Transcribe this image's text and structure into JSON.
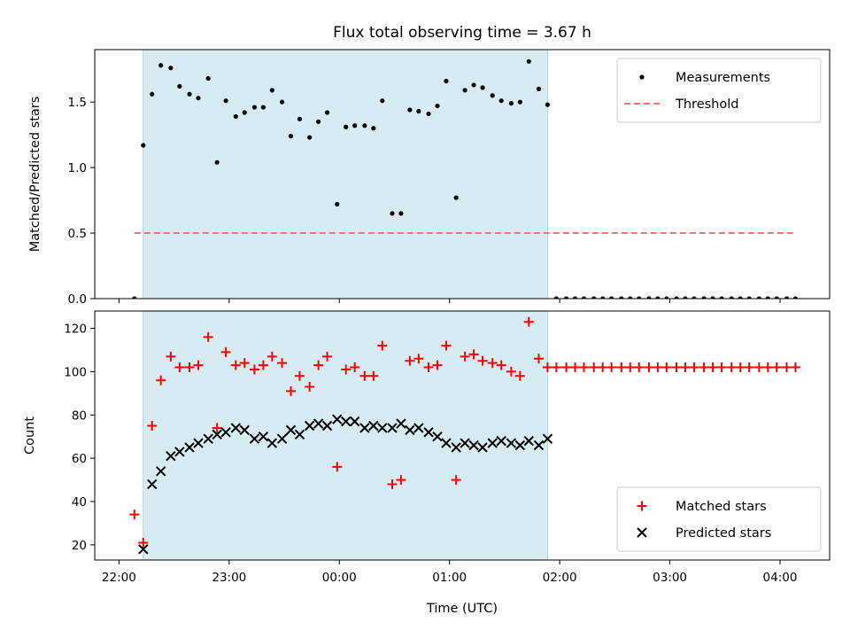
{
  "chart_data": {
    "title": "Flux total observing time = 3.67 h",
    "xlabel": "Time (UTC)",
    "x_units": "hours after 22:00 UTC (22:00 on day 0 = 0)",
    "xlim": [
      -0.22,
      6.45
    ],
    "x_ticks": [
      {
        "value": 0,
        "label": "22:00"
      },
      {
        "value": 1,
        "label": "23:00"
      },
      {
        "value": 2,
        "label": "00:00"
      },
      {
        "value": 3,
        "label": "01:00"
      },
      {
        "value": 4,
        "label": "02:00"
      },
      {
        "value": 5,
        "label": "03:00"
      },
      {
        "value": 6,
        "label": "04:00"
      }
    ],
    "shaded_span": {
      "x_start": 0.22,
      "x_end": 3.89,
      "color": "#add8e6",
      "alpha": 0.5
    },
    "panels": [
      {
        "name": "ratio",
        "type": "scatter",
        "ylabel": "Matched/Predicted stars",
        "ylim": [
          0,
          1.9
        ],
        "y_ticks": [
          0.0,
          0.5,
          1.0,
          1.5
        ],
        "y_tick_labels": [
          "0.0",
          "0.5",
          "1.0",
          "1.5"
        ],
        "legend": {
          "position": "top-right"
        },
        "series": [
          {
            "name": "Measurements",
            "marker": "dot",
            "color": "#000000",
            "points": [
              [
                0.14,
                0.0
              ],
              [
                0.22,
                1.17
              ],
              [
                0.3,
                1.56
              ],
              [
                0.38,
                1.78
              ],
              [
                0.47,
                1.76
              ],
              [
                0.55,
                1.62
              ],
              [
                0.64,
                1.56
              ],
              [
                0.72,
                1.53
              ],
              [
                0.81,
                1.68
              ],
              [
                0.89,
                1.04
              ],
              [
                0.97,
                1.51
              ],
              [
                1.06,
                1.39
              ],
              [
                1.14,
                1.42
              ],
              [
                1.23,
                1.46
              ],
              [
                1.31,
                1.46
              ],
              [
                1.39,
                1.59
              ],
              [
                1.48,
                1.5
              ],
              [
                1.56,
                1.24
              ],
              [
                1.64,
                1.37
              ],
              [
                1.73,
                1.23
              ],
              [
                1.81,
                1.35
              ],
              [
                1.89,
                1.42
              ],
              [
                1.98,
                0.72
              ],
              [
                2.06,
                1.31
              ],
              [
                2.14,
                1.32
              ],
              [
                2.23,
                1.32
              ],
              [
                2.31,
                1.3
              ],
              [
                2.39,
                1.51
              ],
              [
                2.48,
                0.65
              ],
              [
                2.56,
                0.65
              ],
              [
                2.64,
                1.44
              ],
              [
                2.72,
                1.43
              ],
              [
                2.81,
                1.41
              ],
              [
                2.89,
                1.47
              ],
              [
                2.97,
                1.66
              ],
              [
                3.06,
                0.77
              ],
              [
                3.14,
                1.59
              ],
              [
                3.22,
                1.63
              ],
              [
                3.3,
                1.61
              ],
              [
                3.39,
                1.55
              ],
              [
                3.47,
                1.51
              ],
              [
                3.56,
                1.49
              ],
              [
                3.64,
                1.5
              ],
              [
                3.72,
                1.81
              ],
              [
                3.81,
                1.6
              ],
              [
                3.89,
                1.48
              ],
              [
                3.97,
                0.0
              ],
              [
                4.06,
                0.0
              ],
              [
                4.14,
                0.0
              ],
              [
                4.22,
                0.0
              ],
              [
                4.31,
                0.0
              ],
              [
                4.39,
                0.0
              ],
              [
                4.47,
                0.0
              ],
              [
                4.56,
                0.0
              ],
              [
                4.64,
                0.0
              ],
              [
                4.72,
                0.0
              ],
              [
                4.81,
                0.0
              ],
              [
                4.89,
                0.0
              ],
              [
                4.97,
                0.0
              ],
              [
                5.06,
                0.0
              ],
              [
                5.14,
                0.0
              ],
              [
                5.22,
                0.0
              ],
              [
                5.31,
                0.0
              ],
              [
                5.39,
                0.0
              ],
              [
                5.47,
                0.0
              ],
              [
                5.56,
                0.0
              ],
              [
                5.64,
                0.0
              ],
              [
                5.72,
                0.0
              ],
              [
                5.81,
                0.0
              ],
              [
                5.89,
                0.0
              ],
              [
                5.97,
                0.0
              ],
              [
                6.06,
                0.0
              ],
              [
                6.14,
                0.0
              ]
            ]
          },
          {
            "name": "Threshold",
            "marker": "dashed-line",
            "color": "#ff7070",
            "points": [
              [
                0.14,
                0.5
              ],
              [
                6.14,
                0.5
              ]
            ]
          }
        ]
      },
      {
        "name": "counts",
        "type": "scatter",
        "ylabel": "Count",
        "ylim": [
          13,
          128
        ],
        "y_ticks": [
          20,
          40,
          60,
          80,
          100,
          120
        ],
        "y_tick_labels": [
          "20",
          "40",
          "60",
          "80",
          "100",
          "120"
        ],
        "legend": {
          "position": "bottom-right"
        },
        "series": [
          {
            "name": "Matched stars",
            "marker": "plus",
            "color": "#ff0000",
            "points": [
              [
                0.14,
                34
              ],
              [
                0.22,
                21
              ],
              [
                0.3,
                75
              ],
              [
                0.38,
                96
              ],
              [
                0.47,
                107
              ],
              [
                0.55,
                102
              ],
              [
                0.64,
                102
              ],
              [
                0.72,
                103
              ],
              [
                0.81,
                116
              ],
              [
                0.89,
                74
              ],
              [
                0.97,
                109
              ],
              [
                1.06,
                103
              ],
              [
                1.14,
                104
              ],
              [
                1.23,
                101
              ],
              [
                1.31,
                103
              ],
              [
                1.39,
                107
              ],
              [
                1.48,
                104
              ],
              [
                1.56,
                91
              ],
              [
                1.64,
                98
              ],
              [
                1.73,
                93
              ],
              [
                1.81,
                103
              ],
              [
                1.89,
                107
              ],
              [
                1.98,
                56
              ],
              [
                2.06,
                101
              ],
              [
                2.14,
                102
              ],
              [
                2.23,
                98
              ],
              [
                2.31,
                98
              ],
              [
                2.39,
                112
              ],
              [
                2.48,
                48
              ],
              [
                2.56,
                50
              ],
              [
                2.64,
                105
              ],
              [
                2.72,
                106
              ],
              [
                2.81,
                102
              ],
              [
                2.89,
                103
              ],
              [
                2.97,
                112
              ],
              [
                3.06,
                50
              ],
              [
                3.14,
                107
              ],
              [
                3.22,
                108
              ],
              [
                3.3,
                105
              ],
              [
                3.39,
                104
              ],
              [
                3.47,
                103
              ],
              [
                3.56,
                100
              ],
              [
                3.64,
                98
              ],
              [
                3.72,
                123
              ],
              [
                3.81,
                106
              ],
              [
                3.89,
                102
              ],
              [
                3.97,
                102
              ],
              [
                4.06,
                102
              ],
              [
                4.14,
                102
              ],
              [
                4.22,
                102
              ],
              [
                4.31,
                102
              ],
              [
                4.39,
                102
              ],
              [
                4.47,
                102
              ],
              [
                4.56,
                102
              ],
              [
                4.64,
                102
              ],
              [
                4.72,
                102
              ],
              [
                4.81,
                102
              ],
              [
                4.89,
                102
              ],
              [
                4.97,
                102
              ],
              [
                5.06,
                102
              ],
              [
                5.14,
                102
              ],
              [
                5.22,
                102
              ],
              [
                5.31,
                102
              ],
              [
                5.39,
                102
              ],
              [
                5.47,
                102
              ],
              [
                5.56,
                102
              ],
              [
                5.64,
                102
              ],
              [
                5.72,
                102
              ],
              [
                5.81,
                102
              ],
              [
                5.89,
                102
              ],
              [
                5.97,
                102
              ],
              [
                6.06,
                102
              ],
              [
                6.14,
                102
              ]
            ]
          },
          {
            "name": "Predicted stars",
            "marker": "x",
            "color": "#000000",
            "points": [
              [
                0.22,
                18
              ],
              [
                0.3,
                48
              ],
              [
                0.38,
                54
              ],
              [
                0.47,
                61
              ],
              [
                0.55,
                63
              ],
              [
                0.64,
                65
              ],
              [
                0.72,
                67
              ],
              [
                0.81,
                69
              ],
              [
                0.89,
                71
              ],
              [
                0.97,
                72
              ],
              [
                1.06,
                74
              ],
              [
                1.14,
                73
              ],
              [
                1.23,
                69
              ],
              [
                1.31,
                70
              ],
              [
                1.39,
                67
              ],
              [
                1.48,
                69
              ],
              [
                1.56,
                73
              ],
              [
                1.64,
                71
              ],
              [
                1.73,
                75
              ],
              [
                1.81,
                76
              ],
              [
                1.89,
                75
              ],
              [
                1.98,
                78
              ],
              [
                2.06,
                77
              ],
              [
                2.14,
                77
              ],
              [
                2.23,
                74
              ],
              [
                2.31,
                75
              ],
              [
                2.39,
                74
              ],
              [
                2.48,
                74
              ],
              [
                2.56,
                76
              ],
              [
                2.64,
                73
              ],
              [
                2.72,
                74
              ],
              [
                2.81,
                72
              ],
              [
                2.89,
                70
              ],
              [
                2.97,
                67
              ],
              [
                3.06,
                65
              ],
              [
                3.14,
                67
              ],
              [
                3.22,
                66
              ],
              [
                3.3,
                65
              ],
              [
                3.39,
                67
              ],
              [
                3.47,
                68
              ],
              [
                3.56,
                67
              ],
              [
                3.64,
                66
              ],
              [
                3.72,
                68
              ],
              [
                3.81,
                66
              ],
              [
                3.89,
                69
              ]
            ]
          }
        ]
      }
    ]
  }
}
